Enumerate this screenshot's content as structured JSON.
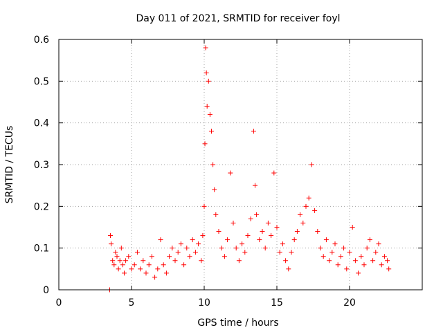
{
  "chart_data": {
    "type": "scatter",
    "title": "Day 011 of 2021, SRMTID for receiver foyl",
    "xlabel": "GPS time / hours",
    "ylabel": "SRMTID / TECUs",
    "xlim": [
      0,
      25
    ],
    "ylim": [
      0,
      0.6
    ],
    "xticks": [
      0,
      5,
      10,
      15,
      20
    ],
    "xtick_labels": [
      "0",
      "5",
      "10",
      "15",
      "20"
    ],
    "yticks": [
      0,
      0.1,
      0.2,
      0.3,
      0.4,
      0.5,
      0.6
    ],
    "ytick_labels": [
      "0",
      "0.1",
      "0.2",
      "0.3",
      "0.4",
      "0.5",
      "0.6"
    ],
    "grid": true,
    "marker": "+",
    "color": "#ff0000",
    "series": [
      {
        "name": "SRMTID",
        "x_range_hours": [
          3.5,
          22.7
        ],
        "points": [
          [
            3.5,
            0.0
          ],
          [
            3.55,
            0.13
          ],
          [
            3.6,
            0.11
          ],
          [
            3.7,
            0.07
          ],
          [
            3.8,
            0.06
          ],
          [
            3.9,
            0.09
          ],
          [
            4.0,
            0.08
          ],
          [
            4.1,
            0.05
          ],
          [
            4.2,
            0.07
          ],
          [
            4.3,
            0.1
          ],
          [
            4.4,
            0.06
          ],
          [
            4.5,
            0.04
          ],
          [
            4.6,
            0.07
          ],
          [
            4.8,
            0.08
          ],
          [
            5.0,
            0.05
          ],
          [
            5.2,
            0.06
          ],
          [
            5.4,
            0.09
          ],
          [
            5.6,
            0.05
          ],
          [
            5.8,
            0.07
          ],
          [
            6.0,
            0.04
          ],
          [
            6.2,
            0.06
          ],
          [
            6.4,
            0.08
          ],
          [
            6.6,
            0.03
          ],
          [
            6.8,
            0.05
          ],
          [
            7.0,
            0.12
          ],
          [
            7.2,
            0.06
          ],
          [
            7.4,
            0.04
          ],
          [
            7.6,
            0.08
          ],
          [
            7.8,
            0.1
          ],
          [
            8.0,
            0.07
          ],
          [
            8.2,
            0.09
          ],
          [
            8.4,
            0.11
          ],
          [
            8.6,
            0.06
          ],
          [
            8.8,
            0.1
          ],
          [
            9.0,
            0.08
          ],
          [
            9.2,
            0.12
          ],
          [
            9.4,
            0.09
          ],
          [
            9.6,
            0.11
          ],
          [
            9.8,
            0.07
          ],
          [
            9.9,
            0.13
          ],
          [
            10.0,
            0.2
          ],
          [
            10.05,
            0.35
          ],
          [
            10.1,
            0.58
          ],
          [
            10.15,
            0.52
          ],
          [
            10.2,
            0.44
          ],
          [
            10.3,
            0.5
          ],
          [
            10.4,
            0.42
          ],
          [
            10.5,
            0.38
          ],
          [
            10.6,
            0.3
          ],
          [
            10.7,
            0.24
          ],
          [
            10.8,
            0.18
          ],
          [
            11.0,
            0.14
          ],
          [
            11.2,
            0.1
          ],
          [
            11.4,
            0.08
          ],
          [
            11.6,
            0.12
          ],
          [
            11.8,
            0.28
          ],
          [
            12.0,
            0.16
          ],
          [
            12.2,
            0.1
          ],
          [
            12.4,
            0.07
          ],
          [
            12.6,
            0.11
          ],
          [
            12.8,
            0.09
          ],
          [
            13.0,
            0.13
          ],
          [
            13.2,
            0.17
          ],
          [
            13.4,
            0.38
          ],
          [
            13.5,
            0.25
          ],
          [
            13.6,
            0.18
          ],
          [
            13.8,
            0.12
          ],
          [
            14.0,
            0.14
          ],
          [
            14.2,
            0.1
          ],
          [
            14.4,
            0.16
          ],
          [
            14.6,
            0.13
          ],
          [
            14.8,
            0.28
          ],
          [
            15.0,
            0.15
          ],
          [
            15.2,
            0.09
          ],
          [
            15.4,
            0.11
          ],
          [
            15.6,
            0.07
          ],
          [
            15.8,
            0.05
          ],
          [
            16.0,
            0.09
          ],
          [
            16.2,
            0.12
          ],
          [
            16.4,
            0.14
          ],
          [
            16.6,
            0.18
          ],
          [
            16.8,
            0.16
          ],
          [
            17.0,
            0.2
          ],
          [
            17.2,
            0.22
          ],
          [
            17.4,
            0.3
          ],
          [
            17.6,
            0.19
          ],
          [
            17.8,
            0.14
          ],
          [
            18.0,
            0.1
          ],
          [
            18.2,
            0.08
          ],
          [
            18.4,
            0.12
          ],
          [
            18.6,
            0.07
          ],
          [
            18.8,
            0.09
          ],
          [
            19.0,
            0.11
          ],
          [
            19.2,
            0.06
          ],
          [
            19.4,
            0.08
          ],
          [
            19.6,
            0.1
          ],
          [
            19.8,
            0.05
          ],
          [
            20.0,
            0.09
          ],
          [
            20.2,
            0.15
          ],
          [
            20.4,
            0.07
          ],
          [
            20.6,
            0.04
          ],
          [
            20.8,
            0.08
          ],
          [
            21.0,
            0.06
          ],
          [
            21.2,
            0.1
          ],
          [
            21.4,
            0.12
          ],
          [
            21.6,
            0.07
          ],
          [
            21.8,
            0.09
          ],
          [
            22.0,
            0.11
          ],
          [
            22.2,
            0.06
          ],
          [
            22.4,
            0.08
          ],
          [
            22.6,
            0.07
          ],
          [
            22.7,
            0.05
          ]
        ]
      }
    ]
  }
}
